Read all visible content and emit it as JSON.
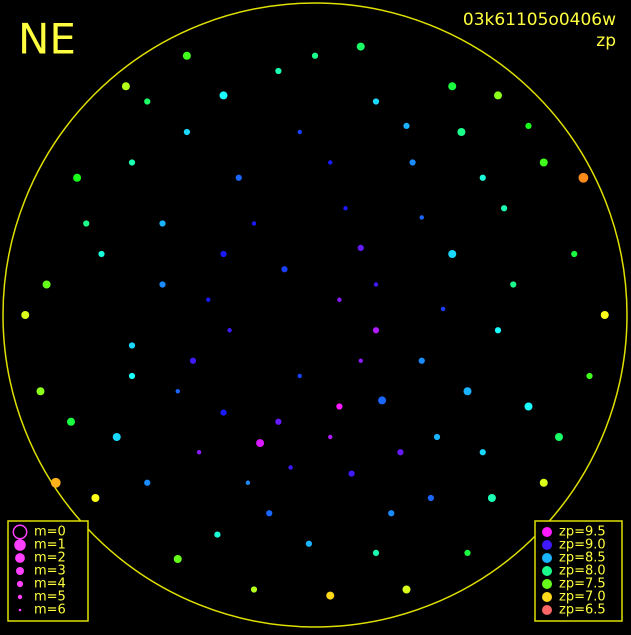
{
  "chart_data": {
    "type": "scatter",
    "title": "NE",
    "image_id": "03k61105o0406w",
    "subtitle": "zp",
    "xlim": [
      -1,
      1
    ],
    "ylim": [
      -1,
      1
    ],
    "zlim": [
      6.5,
      9.5
    ],
    "magnitude_legend": [
      {
        "label": "m=0",
        "m": 0
      },
      {
        "label": "m=1",
        "m": 1
      },
      {
        "label": "m=2",
        "m": 2
      },
      {
        "label": "m=3",
        "m": 3
      },
      {
        "label": "m=4",
        "m": 4
      },
      {
        "label": "m=5",
        "m": 5
      },
      {
        "label": "m=6",
        "m": 6
      }
    ],
    "zp_legend": [
      {
        "label": "zp=9.5",
        "zp": 9.5
      },
      {
        "label": "zp=9.0",
        "zp": 9.0
      },
      {
        "label": "zp=8.5",
        "zp": 8.5
      },
      {
        "label": "zp=8.0",
        "zp": 8.0
      },
      {
        "label": "zp=7.5",
        "zp": 7.5
      },
      {
        "label": "zp=7.0",
        "zp": 7.0
      },
      {
        "label": "zp=6.5",
        "zp": 6.5
      }
    ],
    "stars": [
      [
        -0.12,
        -0.35,
        4,
        9.1
      ],
      [
        0.05,
        -0.4,
        5,
        9.3
      ],
      [
        -0.3,
        -0.32,
        4,
        8.9
      ],
      [
        0.22,
        -0.28,
        3,
        8.7
      ],
      [
        -0.05,
        -0.2,
        5,
        8.8
      ],
      [
        0.35,
        -0.15,
        4,
        8.6
      ],
      [
        -0.45,
        -0.25,
        5,
        8.7
      ],
      [
        0.12,
        -0.52,
        4,
        9.0
      ],
      [
        -0.22,
        -0.55,
        5,
        8.6
      ],
      [
        0.4,
        -0.4,
        4,
        8.5
      ],
      [
        -0.6,
        -0.1,
        4,
        8.4
      ],
      [
        0.6,
        -0.05,
        4,
        8.3
      ],
      [
        -0.35,
        0.05,
        5,
        8.9
      ],
      [
        0.2,
        0.1,
        5,
        9.0
      ],
      [
        -0.1,
        0.15,
        4,
        8.8
      ],
      [
        0.45,
        0.2,
        3,
        8.4
      ],
      [
        -0.5,
        0.3,
        4,
        8.5
      ],
      [
        0.1,
        0.35,
        5,
        8.9
      ],
      [
        -0.25,
        0.45,
        4,
        8.7
      ],
      [
        0.32,
        0.5,
        4,
        8.6
      ],
      [
        -0.05,
        0.6,
        5,
        8.8
      ],
      [
        0.55,
        0.45,
        4,
        8.2
      ],
      [
        -0.6,
        0.5,
        4,
        8.1
      ],
      [
        0.2,
        0.7,
        4,
        8.4
      ],
      [
        -0.3,
        0.72,
        3,
        8.3
      ],
      [
        0.0,
        0.85,
        4,
        8.0
      ],
      [
        0.45,
        0.75,
        3,
        7.8
      ],
      [
        -0.55,
        0.7,
        4,
        7.9
      ],
      [
        0.75,
        0.5,
        3,
        7.6
      ],
      [
        -0.78,
        0.45,
        3,
        7.7
      ],
      [
        0.85,
        0.2,
        4,
        7.8
      ],
      [
        -0.88,
        0.1,
        3,
        7.5
      ],
      [
        0.9,
        -0.2,
        4,
        7.6
      ],
      [
        -0.9,
        -0.25,
        3,
        7.4
      ],
      [
        0.75,
        -0.55,
        3,
        7.2
      ],
      [
        -0.72,
        -0.6,
        3,
        7.1
      ],
      [
        0.5,
        -0.78,
        4,
        7.8
      ],
      [
        -0.45,
        -0.8,
        3,
        7.5
      ],
      [
        0.05,
        -0.92,
        3,
        7.0
      ],
      [
        -0.2,
        -0.9,
        4,
        7.3
      ],
      [
        0.3,
        -0.9,
        3,
        7.2
      ],
      [
        0.88,
        0.45,
        2,
        6.8
      ],
      [
        -0.85,
        -0.55,
        2,
        6.9
      ],
      [
        0.6,
        0.72,
        3,
        7.4
      ],
      [
        -0.62,
        0.75,
        3,
        7.3
      ],
      [
        -0.18,
        -0.42,
        3,
        9.4
      ],
      [
        0.08,
        -0.3,
        4,
        9.5
      ],
      [
        -0.38,
        -0.45,
        5,
        9.2
      ],
      [
        0.28,
        -0.45,
        4,
        9.1
      ],
      [
        0.15,
        -0.15,
        5,
        9.2
      ],
      [
        -0.15,
        -0.65,
        4,
        8.7
      ],
      [
        0.25,
        -0.65,
        4,
        8.6
      ],
      [
        -0.4,
        -0.15,
        4,
        9.0
      ],
      [
        0.5,
        -0.25,
        3,
        8.5
      ],
      [
        0.65,
        0.1,
        4,
        8.0
      ],
      [
        -0.7,
        0.2,
        4,
        8.2
      ],
      [
        -0.2,
        0.3,
        5,
        8.9
      ],
      [
        0.35,
        0.32,
        5,
        8.7
      ],
      [
        -0.42,
        0.6,
        4,
        8.4
      ],
      [
        0.05,
        0.5,
        5,
        8.9
      ],
      [
        0.7,
        -0.3,
        3,
        8.3
      ],
      [
        -0.65,
        -0.4,
        3,
        8.4
      ],
      [
        0.38,
        -0.6,
        4,
        8.7
      ],
      [
        -0.55,
        -0.55,
        4,
        8.6
      ],
      [
        0.58,
        -0.6,
        3,
        8.1
      ],
      [
        -0.02,
        -0.75,
        4,
        8.5
      ],
      [
        0.15,
        0.22,
        4,
        9.1
      ],
      [
        -0.28,
        -0.05,
        5,
        9.0
      ],
      [
        0.42,
        0.02,
        5,
        8.8
      ],
      [
        -0.5,
        0.1,
        4,
        8.6
      ],
      [
        0.2,
        -0.05,
        4,
        9.3
      ],
      [
        -0.08,
        -0.5,
        5,
        9.0
      ],
      [
        0.62,
        0.35,
        4,
        8.1
      ],
      [
        -0.75,
        0.3,
        4,
        8.0
      ],
      [
        0.3,
        0.62,
        4,
        8.5
      ],
      [
        -0.12,
        0.8,
        4,
        8.1
      ],
      [
        0.15,
        0.88,
        3,
        7.9
      ],
      [
        -0.42,
        0.85,
        3,
        7.6
      ],
      [
        0.7,
        0.62,
        4,
        7.7
      ],
      [
        0.95,
        0.0,
        3,
        7.1
      ],
      [
        -0.95,
        0.0,
        3,
        7.2
      ],
      [
        0.8,
        -0.4,
        3,
        7.9
      ],
      [
        -0.8,
        -0.35,
        3,
        7.8
      ],
      [
        0.2,
        -0.78,
        4,
        8.1
      ],
      [
        -0.32,
        -0.72,
        4,
        8.2
      ],
      [
        0.48,
        0.6,
        3,
        8.0
      ],
      [
        -0.3,
        0.2,
        4,
        8.9
      ],
      [
        0.08,
        0.05,
        5,
        9.2
      ],
      [
        -0.6,
        -0.2,
        4,
        8.3
      ],
      [
        0.55,
        -0.45,
        4,
        8.4
      ]
    ]
  }
}
